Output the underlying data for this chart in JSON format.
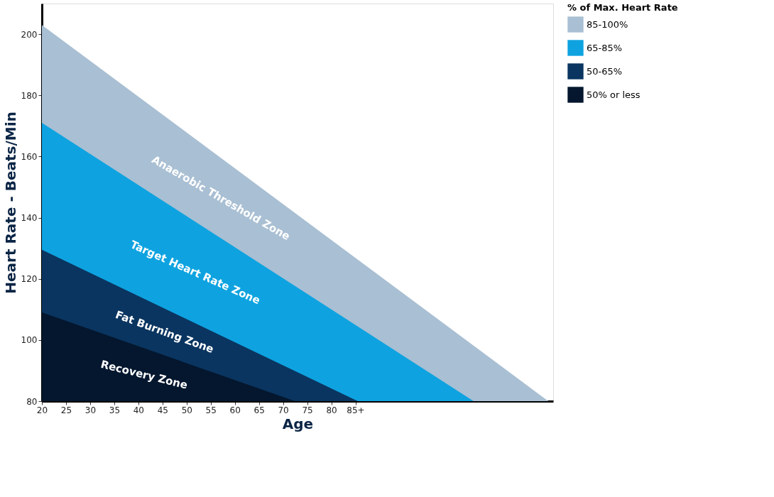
{
  "chart_data": {
    "type": "area",
    "xlabel": "Age",
    "ylabel": "Heart Rate - Beats/Min",
    "legend_title": "% of Max. Heart Rate",
    "xlim": [
      20,
      126
    ],
    "ylim": [
      80,
      210
    ],
    "xticks": [
      20,
      25,
      30,
      35,
      40,
      45,
      50,
      55,
      60,
      65,
      70,
      75,
      80,
      {
        "value": 85,
        "label": "85+"
      }
    ],
    "yticks": [
      80,
      100,
      120,
      140,
      160,
      180,
      200
    ],
    "grid": false,
    "legend": "right",
    "series": [
      {
        "name": "85-100%",
        "color": "#a9bfd3",
        "x": [
          20,
          125
        ],
        "values": [
          203,
          80
        ]
      },
      {
        "name": "65-85%",
        "color": "#0ea3e0",
        "x": [
          20,
          109.5
        ],
        "values": [
          171,
          80
        ]
      },
      {
        "name": "50-65%",
        "color": "#0a3560",
        "x": [
          20,
          85.5
        ],
        "values": [
          129.5,
          80
        ]
      },
      {
        "name": "50% or less",
        "color": "#04172e",
        "x": [
          20,
          72.5
        ],
        "values": [
          109,
          80
        ]
      }
    ],
    "annotations": [
      "Anaerobic Threshold Zone",
      "Target Heart Rate Zone",
      "Fat Burning Zone",
      "Recovery Zone"
    ]
  }
}
